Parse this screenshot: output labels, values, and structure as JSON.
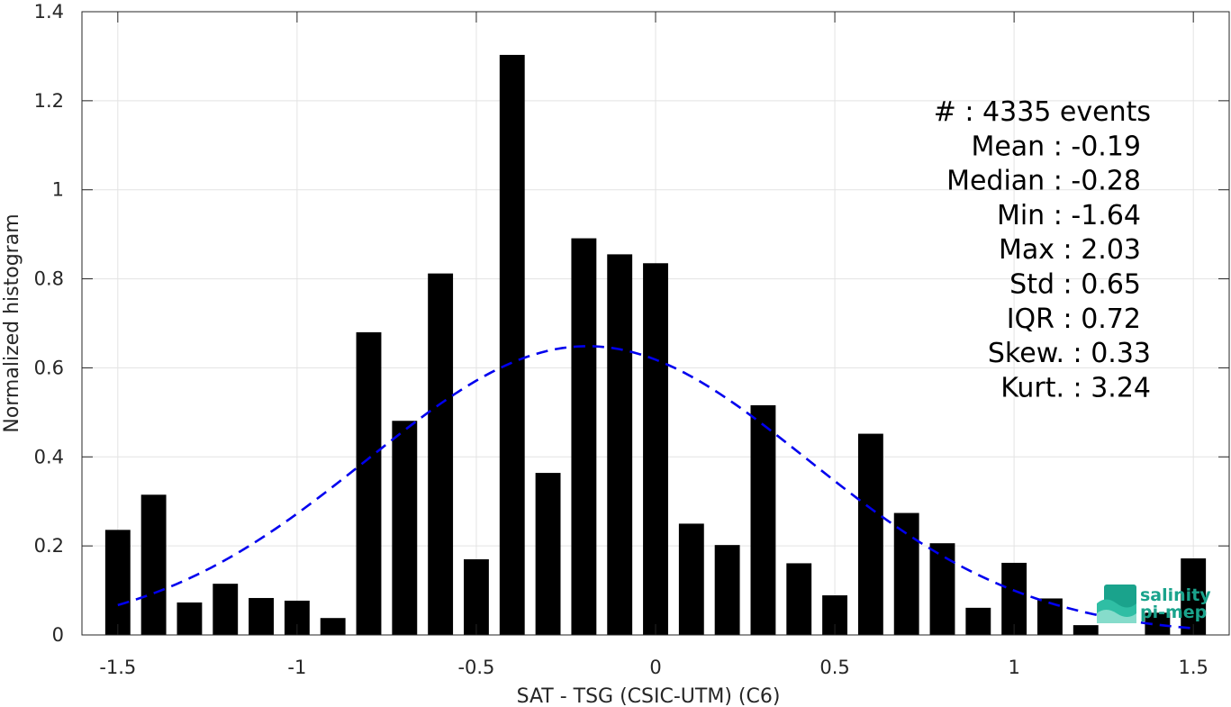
{
  "chart_data": {
    "type": "bar",
    "xlabel": "SAT - TSG (CSIC-UTM) (C6)",
    "ylabel": "Normalized histogram",
    "xlim": [
      -1.6,
      1.6
    ],
    "ylim": [
      0,
      1.4
    ],
    "xticks": [
      -1.5,
      -1,
      -0.5,
      0,
      0.5,
      1,
      1.5
    ],
    "xtick_labels": [
      "-1.5",
      "-1",
      "-0.5",
      "0",
      "0.5",
      "1",
      "1.5"
    ],
    "yticks": [
      0,
      0.2,
      0.4,
      0.6,
      0.8,
      1,
      1.2,
      1.4
    ],
    "ytick_labels": [
      "0",
      "0.2",
      "0.4",
      "0.6",
      "0.8",
      "1",
      "1.2",
      "1.4"
    ],
    "grid": true,
    "bar_width": 0.07,
    "bar_color": "#000000",
    "bins": [
      -1.5,
      -1.4,
      -1.3,
      -1.2,
      -1.1,
      -1.0,
      -0.9,
      -0.8,
      -0.7,
      -0.6,
      -0.5,
      -0.4,
      -0.3,
      -0.2,
      -0.1,
      0.0,
      0.1,
      0.2,
      0.3,
      0.4,
      0.5,
      0.6,
      0.7,
      0.8,
      0.9,
      1.0,
      1.1,
      1.2,
      1.3,
      1.4,
      1.5
    ],
    "values": [
      0.236,
      0.315,
      0.073,
      0.115,
      0.083,
      0.077,
      0.038,
      0.68,
      0.481,
      0.812,
      0.17,
      1.303,
      0.364,
      0.891,
      0.855,
      0.835,
      0.25,
      0.202,
      0.516,
      0.161,
      0.089,
      0.452,
      0.274,
      0.206,
      0.061,
      0.162,
      0.082,
      0.022,
      0.0,
      0.05,
      0.172
    ],
    "fit_curve": {
      "type": "normal",
      "mean": -0.19,
      "std": 0.615,
      "x_range": [
        -1.5,
        1.5
      ],
      "color": "#0000ee",
      "style": "dashed"
    },
    "stats_lines": [
      "#  : 4335 events",
      "Mean : -0.19",
      "Median : -0.28",
      "Min : -1.64",
      "Max : 2.03",
      "Std : 0.65",
      "IQR : 0.72",
      "Skew. : 0.33",
      "Kurt. : 3.24"
    ]
  },
  "logo": {
    "line1": "salinity",
    "line2": "pi-mep",
    "color": "#1aa38c"
  }
}
